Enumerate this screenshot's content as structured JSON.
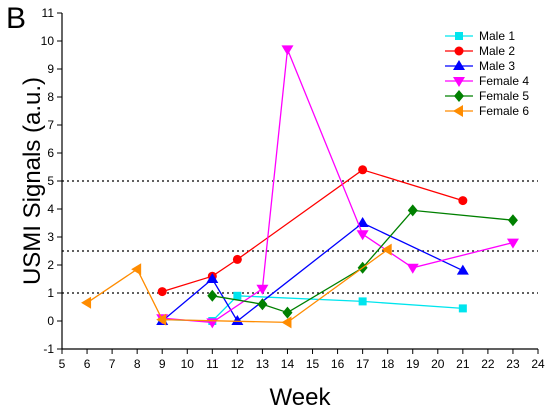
{
  "panel_label": "B",
  "chart_data": {
    "type": "line",
    "xlabel": "Week",
    "ylabel": "USMI Signals (a.u.)",
    "xlim": [
      5,
      24
    ],
    "ylim": [
      -1,
      11
    ],
    "xticks": [
      5,
      6,
      7,
      8,
      9,
      10,
      11,
      12,
      13,
      14,
      15,
      16,
      17,
      18,
      19,
      20,
      21,
      22,
      23,
      24
    ],
    "yticks": [
      -1,
      0,
      1,
      2,
      3,
      4,
      5,
      6,
      7,
      8,
      9,
      10,
      11
    ],
    "reference_lines": [
      1,
      2.5,
      5
    ],
    "legend_position": "top-right",
    "grid": false,
    "series": [
      {
        "name": "Male 1",
        "color": "#00e5ee",
        "marker": "square",
        "x": [
          9,
          11,
          12,
          17,
          21
        ],
        "y": [
          0.05,
          0.0,
          0.9,
          0.7,
          0.45
        ]
      },
      {
        "name": "Male 2",
        "color": "#ff0000",
        "marker": "circle",
        "x": [
          9,
          11,
          12,
          17,
          21
        ],
        "y": [
          1.05,
          1.6,
          2.2,
          5.4,
          4.3
        ]
      },
      {
        "name": "Male 3",
        "color": "#0000ff",
        "marker": "triangle-up",
        "x": [
          9,
          11,
          12,
          17,
          21
        ],
        "y": [
          0.0,
          1.5,
          0.0,
          3.5,
          1.8
        ]
      },
      {
        "name": "Female 4",
        "color": "#ff00ff",
        "marker": "triangle-down",
        "x": [
          9,
          11,
          13,
          14,
          17,
          19,
          23
        ],
        "y": [
          0.1,
          -0.05,
          1.15,
          9.7,
          3.1,
          1.9,
          2.8
        ]
      },
      {
        "name": "Female 5",
        "color": "#008000",
        "marker": "diamond",
        "x": [
          11,
          13,
          14,
          17,
          19,
          23
        ],
        "y": [
          0.9,
          0.6,
          0.3,
          1.9,
          3.95,
          3.6
        ]
      },
      {
        "name": "Female 6",
        "color": "#ff8c00",
        "marker": "triangle-left",
        "x": [
          6,
          8,
          9,
          14,
          18
        ],
        "y": [
          0.65,
          1.85,
          0.05,
          -0.05,
          2.55
        ]
      }
    ]
  }
}
